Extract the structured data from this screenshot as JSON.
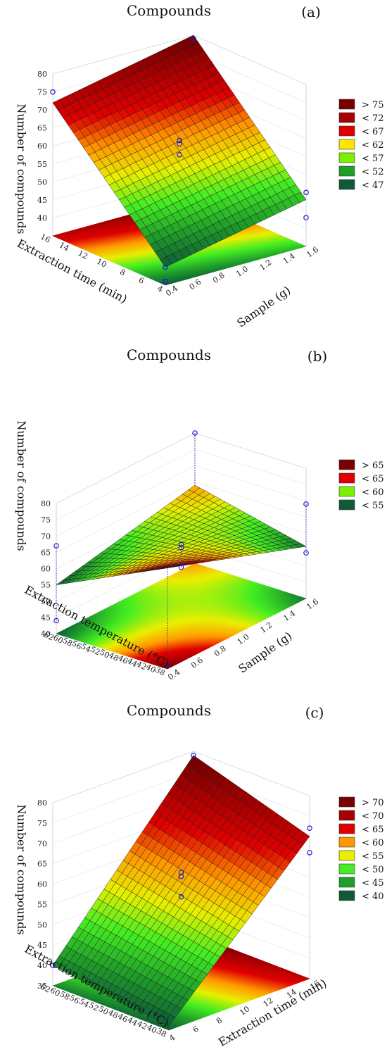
{
  "chart_data": [
    {
      "type": "surface",
      "panel": "(a)",
      "title": "Compounds",
      "xlabel": "Sample (g)",
      "ylabel": "Extraction time (min)",
      "zlabel": "Number of compounds",
      "x_ticks": [
        "0.4",
        "0.6",
        "0.8",
        "1.0",
        "1.2",
        "1.4",
        "1.6"
      ],
      "y_ticks": [
        "4",
        "6",
        "8",
        "10",
        "12",
        "14",
        "16"
      ],
      "z_ticks": [
        "40",
        "45",
        "50",
        "55",
        "60",
        "65",
        "70",
        "75",
        "80"
      ],
      "xlim": [
        0.4,
        1.6
      ],
      "ylim": [
        4,
        16
      ],
      "zlim": [
        35,
        80
      ],
      "surface": {
        "type": "linear",
        "z_x0y0": 40,
        "z_x1y0": 48,
        "z_x0y1": 72,
        "z_x1y1": 80
      },
      "points": [
        {
          "x": 0.4,
          "y": 16,
          "z": 75
        },
        {
          "x": 1.6,
          "y": 16,
          "z": 79
        },
        {
          "x": 1.0,
          "y": 10,
          "z": 63
        },
        {
          "x": 1.0,
          "y": 10,
          "z": 62
        },
        {
          "x": 1.0,
          "y": 10,
          "z": 59
        },
        {
          "x": 1.6,
          "y": 4,
          "z": 50
        },
        {
          "x": 1.6,
          "y": 4,
          "z": 43
        },
        {
          "x": 0.4,
          "y": 4,
          "z": 40
        },
        {
          "x": 0.4,
          "y": 4,
          "z": 36
        }
      ],
      "legend": [
        "> 75",
        "< 72",
        "< 67",
        "< 62",
        "< 57",
        "< 52",
        "< 47"
      ],
      "legend_colors": [
        "#7a0000",
        "#a80000",
        "#e00000",
        "#ffe600",
        "#7cf000",
        "#1f9e2a",
        "#0f5a37"
      ],
      "legend_position": "right"
    },
    {
      "type": "surface",
      "panel": "(b)",
      "title": "Compounds",
      "xlabel": "Sample (g)",
      "ylabel": "Extraction temperature (°C)",
      "zlabel": "Number of compounds",
      "x_ticks": [
        "0.4",
        "0.6",
        "0.8",
        "1.0",
        "1.2",
        "1.4",
        "1.6"
      ],
      "y_ticks": [
        "38",
        "40",
        "42",
        "44",
        "46",
        "48",
        "50",
        "52",
        "54",
        "56",
        "58",
        "60",
        "62"
      ],
      "z_ticks": [
        "40",
        "45",
        "50",
        "55",
        "60",
        "65",
        "70",
        "75",
        "80"
      ],
      "xlim": [
        0.4,
        1.6
      ],
      "ylim": [
        38,
        62
      ],
      "zlim": [
        40,
        80
      ],
      "surface": {
        "type": "saddle",
        "z_x0y0": 71,
        "z_x1y0": 56,
        "z_x0y1": 55,
        "z_x1y1": 64
      },
      "points": [
        {
          "x": 1.6,
          "y": 62,
          "z": 80
        },
        {
          "x": 1.0,
          "y": 50,
          "z": 62
        },
        {
          "x": 1.0,
          "y": 50,
          "z": 61
        },
        {
          "x": 1.0,
          "y": 50,
          "z": 55
        },
        {
          "x": 0.4,
          "y": 62,
          "z": 67
        },
        {
          "x": 0.4,
          "y": 62,
          "z": 44
        },
        {
          "x": 1.6,
          "y": 38,
          "z": 69
        },
        {
          "x": 1.6,
          "y": 38,
          "z": 54
        },
        {
          "x": 0.4,
          "y": 38,
          "z": 41
        }
      ],
      "legend": [
        "> 65",
        "< 65",
        "< 60",
        "< 55"
      ],
      "legend_colors": [
        "#7a0000",
        "#e00000",
        "#7cf000",
        "#0f5a37"
      ],
      "legend_position": "right"
    },
    {
      "type": "surface",
      "panel": "(c)",
      "title": "Compounds",
      "xlabel": "Extraction time (min)",
      "ylabel": "Extraction temperature (°C)",
      "zlabel": "Number of compounds",
      "x_ticks": [
        "4",
        "6",
        "8",
        "10",
        "12",
        "14",
        "16"
      ],
      "y_ticks": [
        "38",
        "40",
        "42",
        "44",
        "46",
        "48",
        "50",
        "52",
        "54",
        "56",
        "58",
        "60",
        "62"
      ],
      "z_ticks": [
        "35",
        "40",
        "45",
        "50",
        "55",
        "60",
        "65",
        "70",
        "75",
        "80"
      ],
      "xlim": [
        4,
        16
      ],
      "ylim": [
        38,
        62
      ],
      "zlim": [
        35,
        80
      ],
      "surface": {
        "type": "linear",
        "z_x0y0": 36,
        "z_x1y0": 70,
        "z_x0y1": 40,
        "z_x1y1": 79
      },
      "points": [
        {
          "x": 4,
          "y": 62,
          "z": 40
        },
        {
          "x": 16,
          "y": 62,
          "z": 79
        },
        {
          "x": 10,
          "y": 50,
          "z": 62
        },
        {
          "x": 10,
          "y": 50,
          "z": 61
        },
        {
          "x": 10,
          "y": 50,
          "z": 56
        },
        {
          "x": 16,
          "y": 38,
          "z": 72
        },
        {
          "x": 16,
          "y": 38,
          "z": 66
        }
      ],
      "legend": [
        "> 70",
        "< 70",
        "< 65",
        "< 60",
        "< 55",
        "< 50",
        "< 45",
        "< 40"
      ],
      "legend_colors": [
        "#7a0000",
        "#a80000",
        "#e00000",
        "#ff9800",
        "#e8ef00",
        "#44ee22",
        "#1f9e2a",
        "#0f5a37"
      ],
      "legend_position": "right"
    }
  ]
}
